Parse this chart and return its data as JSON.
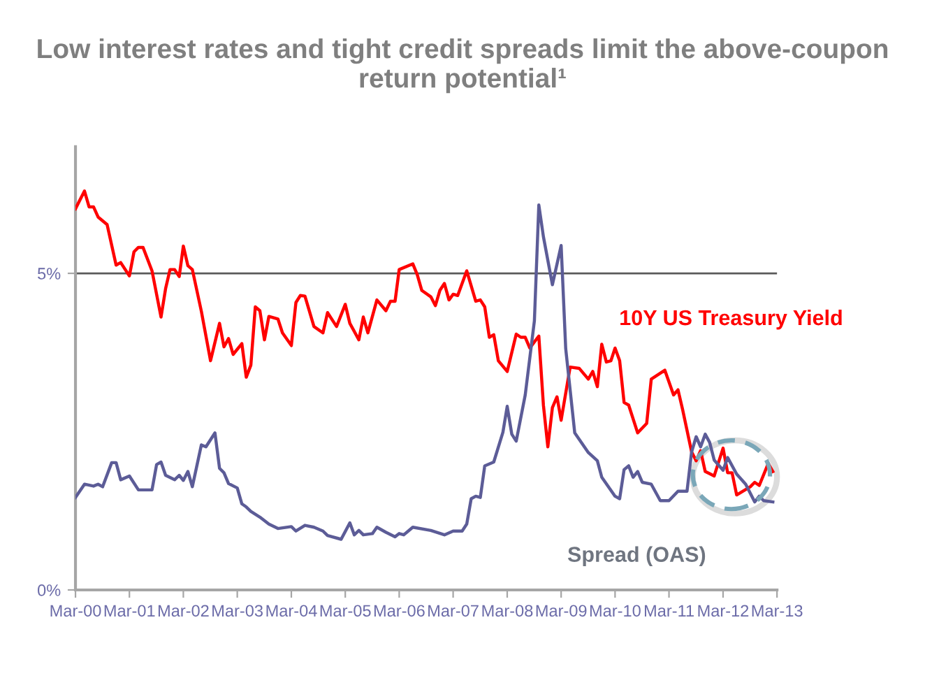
{
  "chart_data": {
    "type": "line",
    "title": "Low interest rates and tight credit spreads limit the above-coupon return potential¹",
    "xlim": [
      "2000-03",
      "2013-03"
    ],
    "xticks": [
      {
        "value": "2000-03",
        "label": "Mar-00"
      },
      {
        "value": "2001-03",
        "label": "Mar-01"
      },
      {
        "value": "2002-03",
        "label": "Mar-02"
      },
      {
        "value": "2003-03",
        "label": "Mar-03"
      },
      {
        "value": "2004-03",
        "label": "Mar-04"
      },
      {
        "value": "2005-03",
        "label": "Mar-05"
      },
      {
        "value": "2006-03",
        "label": "Mar-06"
      },
      {
        "value": "2007-03",
        "label": "Mar-07"
      },
      {
        "value": "2008-03",
        "label": "Mar-08"
      },
      {
        "value": "2009-03",
        "label": "Mar-09"
      },
      {
        "value": "2010-03",
        "label": "Mar-10"
      },
      {
        "value": "2011-03",
        "label": "Mar-11"
      },
      {
        "value": "2012-03",
        "label": "Mar-12"
      },
      {
        "value": "2013-03",
        "label": "Mar-13"
      }
    ],
    "ylim": [
      0,
      7
    ],
    "yticks": [
      {
        "value": 0,
        "label": "0%"
      },
      {
        "value": 5,
        "label": "5%"
      }
    ],
    "grid": false,
    "legend": false,
    "marker": "none",
    "line_style": "solid",
    "ref_lines": [
      {
        "axis": "y",
        "value": 5,
        "color": "#595959"
      }
    ],
    "series": [
      {
        "name": "10Y US Treasury Yield",
        "color": "#ff0000",
        "x": [
          "2000-03",
          "2000-05",
          "2000-06",
          "2000-07",
          "2000-08",
          "2000-10",
          "2000-12",
          "2001-01",
          "2001-03",
          "2001-04",
          "2001-05",
          "2001-06",
          "2001-08",
          "2001-10",
          "2001-11",
          "2001-12",
          "2002-01",
          "2002-02",
          "2002-03",
          "2002-04",
          "2002-05",
          "2002-07",
          "2002-09",
          "2002-11",
          "2002-12",
          "2003-01",
          "2003-02",
          "2003-04",
          "2003-05",
          "2003-06",
          "2003-07",
          "2003-08",
          "2003-09",
          "2003-10",
          "2003-12",
          "2004-01",
          "2004-03",
          "2004-04",
          "2004-05",
          "2004-06",
          "2004-08",
          "2004-10",
          "2004-11",
          "2005-01",
          "2005-03",
          "2005-04",
          "2005-06",
          "2005-07",
          "2005-08",
          "2005-10",
          "2005-12",
          "2006-01",
          "2006-02",
          "2006-03",
          "2006-06",
          "2006-07",
          "2006-08",
          "2006-10",
          "2006-11",
          "2006-12",
          "2007-01",
          "2007-02",
          "2007-03",
          "2007-04",
          "2007-06",
          "2007-08",
          "2007-09",
          "2007-10",
          "2007-11",
          "2007-12",
          "2008-01",
          "2008-03",
          "2008-05",
          "2008-06",
          "2008-07",
          "2008-08",
          "2008-10",
          "2008-11",
          "2008-12",
          "2009-01",
          "2009-02",
          "2009-03",
          "2009-05",
          "2009-07",
          "2009-09",
          "2009-10",
          "2009-11",
          "2009-12",
          "2010-01",
          "2010-02",
          "2010-03",
          "2010-04",
          "2010-05",
          "2010-06",
          "2010-08",
          "2010-10",
          "2010-11",
          "2011-02",
          "2011-04",
          "2011-05",
          "2011-06",
          "2011-08",
          "2011-09",
          "2011-10",
          "2011-11",
          "2012-01",
          "2012-03",
          "2012-04",
          "2012-05",
          "2012-06",
          "2012-09",
          "2012-10",
          "2012-11",
          "2013-01",
          "2013-02"
        ],
        "values": [
          6.02,
          6.3,
          6.05,
          6.05,
          5.89,
          5.77,
          5.13,
          5.17,
          4.96,
          5.34,
          5.41,
          5.41,
          5.04,
          4.31,
          4.76,
          5.06,
          5.06,
          4.95,
          5.43,
          5.12,
          5.06,
          4.4,
          3.62,
          4.21,
          3.84,
          3.97,
          3.72,
          3.89,
          3.36,
          3.55,
          4.47,
          4.41,
          3.95,
          4.32,
          4.28,
          4.06,
          3.86,
          4.54,
          4.65,
          4.64,
          4.16,
          4.06,
          4.38,
          4.16,
          4.51,
          4.21,
          3.95,
          4.31,
          4.06,
          4.58,
          4.41,
          4.56,
          4.56,
          5.06,
          5.15,
          4.98,
          4.73,
          4.63,
          4.49,
          4.73,
          4.84,
          4.58,
          4.67,
          4.65,
          5.04,
          4.56,
          4.58,
          4.47,
          3.99,
          4.03,
          3.62,
          3.45,
          4.04,
          3.99,
          3.99,
          3.82,
          4.01,
          2.92,
          2.26,
          2.88,
          3.05,
          2.68,
          3.52,
          3.5,
          3.33,
          3.45,
          3.21,
          3.88,
          3.6,
          3.62,
          3.82,
          3.62,
          2.96,
          2.92,
          2.48,
          2.63,
          3.33,
          3.47,
          3.08,
          3.16,
          2.85,
          2.18,
          2.04,
          2.2,
          1.87,
          1.8,
          2.24,
          1.85,
          1.85,
          1.5,
          1.63,
          1.7,
          1.65,
          2.0,
          1.87
        ]
      },
      {
        "name": "Spread (OAS)",
        "color": "#5c5c97",
        "x": [
          "2000-03",
          "2000-05",
          "2000-07",
          "2000-08",
          "2000-09",
          "2000-11",
          "2000-12",
          "2001-01",
          "2001-03",
          "2001-05",
          "2001-08",
          "2001-09",
          "2001-10",
          "2001-11",
          "2002-01",
          "2002-02",
          "2002-03",
          "2002-04",
          "2002-05",
          "2002-07",
          "2002-08",
          "2002-10",
          "2002-11",
          "2002-12",
          "2003-01",
          "2003-03",
          "2003-04",
          "2003-05",
          "2003-06",
          "2003-08",
          "2003-10",
          "2003-12",
          "2004-03",
          "2004-04",
          "2004-06",
          "2004-08",
          "2004-10",
          "2004-11",
          "2005-02",
          "2005-04",
          "2005-05",
          "2005-06",
          "2005-07",
          "2005-09",
          "2005-10",
          "2005-12",
          "2006-02",
          "2006-03",
          "2006-04",
          "2006-06",
          "2006-10",
          "2007-01",
          "2007-03",
          "2007-05",
          "2007-06",
          "2007-07",
          "2007-08",
          "2007-09",
          "2007-10",
          "2007-12",
          "2008-02",
          "2008-03",
          "2008-04",
          "2008-05",
          "2008-07",
          "2008-09",
          "2008-10",
          "2008-11",
          "2009-01",
          "2009-03",
          "2009-04",
          "2009-06",
          "2009-09",
          "2009-11",
          "2009-12",
          "2010-03",
          "2010-04",
          "2010-05",
          "2010-06",
          "2010-07",
          "2010-08",
          "2010-09",
          "2010-11",
          "2011-01",
          "2011-03",
          "2011-05",
          "2011-07",
          "2011-08",
          "2011-09",
          "2011-10",
          "2011-11",
          "2011-12",
          "2012-01",
          "2012-03",
          "2012-04",
          "2012-06",
          "2012-08",
          "2012-10",
          "2012-11",
          "2012-12",
          "2013-02"
        ],
        "values": [
          1.46,
          1.67,
          1.64,
          1.67,
          1.63,
          2.01,
          2.01,
          1.74,
          1.8,
          1.58,
          1.58,
          1.98,
          2.02,
          1.81,
          1.74,
          1.81,
          1.73,
          1.87,
          1.63,
          2.29,
          2.26,
          2.48,
          1.92,
          1.85,
          1.68,
          1.61,
          1.36,
          1.31,
          1.24,
          1.15,
          1.04,
          0.97,
          1.0,
          0.93,
          1.02,
          0.99,
          0.93,
          0.86,
          0.8,
          1.06,
          0.87,
          0.94,
          0.87,
          0.89,
          0.99,
          0.91,
          0.84,
          0.89,
          0.87,
          0.99,
          0.94,
          0.87,
          0.93,
          0.93,
          1.04,
          1.44,
          1.48,
          1.46,
          1.96,
          2.02,
          2.49,
          2.9,
          2.46,
          2.35,
          3.08,
          4.25,
          6.08,
          5.58,
          4.82,
          5.44,
          3.81,
          2.48,
          2.17,
          2.04,
          1.78,
          1.48,
          1.44,
          1.9,
          1.96,
          1.78,
          1.87,
          1.7,
          1.67,
          1.41,
          1.41,
          1.56,
          1.56,
          2.18,
          2.42,
          2.26,
          2.46,
          2.33,
          2.05,
          1.89,
          2.09,
          1.83,
          1.67,
          1.39,
          1.48,
          1.41,
          1.39
        ]
      }
    ]
  }
}
